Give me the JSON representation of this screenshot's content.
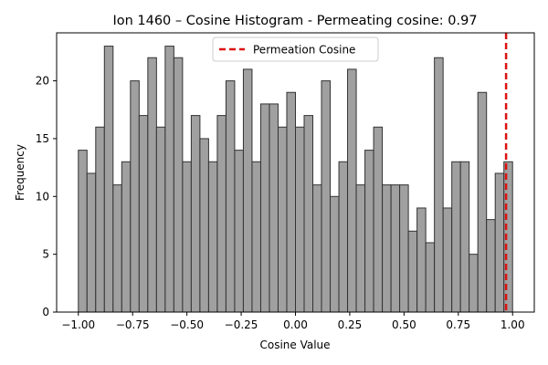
{
  "chart_data": {
    "type": "bar",
    "title": "Ion 1460 – Cosine Histogram - Permeating cosine: 0.97",
    "xlabel": "Cosine Value",
    "ylabel": "Frequency",
    "bin_edges_start": -1.0,
    "bin_width": 0.04,
    "values": [
      14,
      12,
      16,
      23,
      11,
      13,
      20,
      17,
      22,
      16,
      23,
      22,
      13,
      17,
      15,
      13,
      17,
      20,
      14,
      21,
      13,
      18,
      18,
      16,
      19,
      16,
      17,
      11,
      20,
      10,
      13,
      21,
      11,
      14,
      16,
      11,
      11,
      11,
      7,
      9,
      6,
      22,
      9,
      13,
      13,
      5,
      19,
      8,
      12,
      13
    ],
    "xlim": [
      -1.1,
      1.1
    ],
    "ylim": [
      0,
      24.15
    ],
    "x_ticks": [
      -1.0,
      -0.75,
      -0.5,
      -0.25,
      0.0,
      0.25,
      0.5,
      0.75,
      1.0
    ],
    "x_tick_labels": [
      "−1.00",
      "−0.75",
      "−0.50",
      "−0.25",
      "0.00",
      "0.25",
      "0.50",
      "0.75",
      "1.00"
    ],
    "y_ticks": [
      0,
      5,
      10,
      15,
      20
    ],
    "y_tick_labels": [
      "0",
      "5",
      "10",
      "15",
      "20"
    ],
    "bar_color": "#a0a0a0",
    "bar_edge_color": "#333333",
    "grid": false,
    "reference_line": {
      "x": 0.97,
      "label": "Permeation Cosine",
      "color": "#dd1111",
      "style": "dashed"
    },
    "legend": {
      "placement": "top-center",
      "entries": [
        "Permeation Cosine"
      ]
    }
  }
}
